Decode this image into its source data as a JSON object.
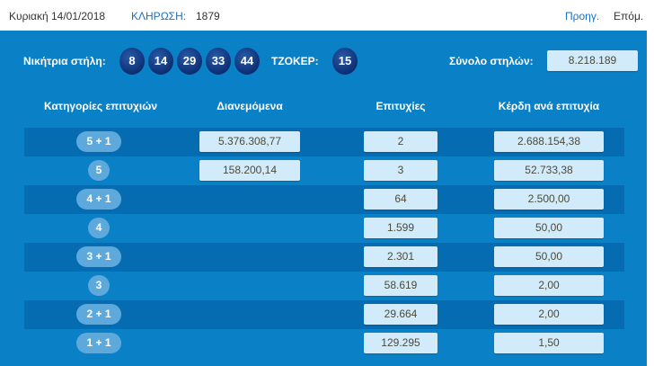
{
  "header": {
    "date": "Κυριακή 14/01/2018",
    "draw_label": "ΚΛΗΡΩΣΗ:",
    "draw_number": "1879",
    "prev": "Προηγ.",
    "next": "Επόμ."
  },
  "winning": {
    "label": "Νικήτρια στήλη:",
    "numbers": [
      "8",
      "14",
      "29",
      "33",
      "44"
    ],
    "joker_label": "ΤΖΟΚΕΡ:",
    "joker": "15",
    "total_label": "Σύνολο στηλών:",
    "total": "8.218.189"
  },
  "table": {
    "headers": [
      "Κατηγορίες επιτυχιών",
      "Διανεμόμενα",
      "Επιτυχίες",
      "Κέρδη ανά επιτυχία"
    ],
    "rows": [
      {
        "cat": "5 + 1",
        "dist": "5.376.308,77",
        "wins": "2",
        "prize": "2.688.154,38"
      },
      {
        "cat": "5",
        "dist": "158.200,14",
        "wins": "3",
        "prize": "52.733,38"
      },
      {
        "cat": "4 + 1",
        "dist": "",
        "wins": "64",
        "prize": "2.500,00"
      },
      {
        "cat": "4",
        "dist": "",
        "wins": "1.599",
        "prize": "50,00"
      },
      {
        "cat": "3 + 1",
        "dist": "",
        "wins": "2.301",
        "prize": "50,00"
      },
      {
        "cat": "3",
        "dist": "",
        "wins": "58.619",
        "prize": "2,00"
      },
      {
        "cat": "2 + 1",
        "dist": "",
        "wins": "29.664",
        "prize": "2,00"
      },
      {
        "cat": "1 + 1",
        "dist": "",
        "wins": "129.295",
        "prize": "1,50"
      }
    ]
  },
  "colors": {
    "panel": "#0a80c6",
    "stripe": "#066cb2",
    "box": "#d2ebfa",
    "pill": "#5ea9dc",
    "ball": "#0c2f74",
    "link": "#1a6fc0"
  }
}
